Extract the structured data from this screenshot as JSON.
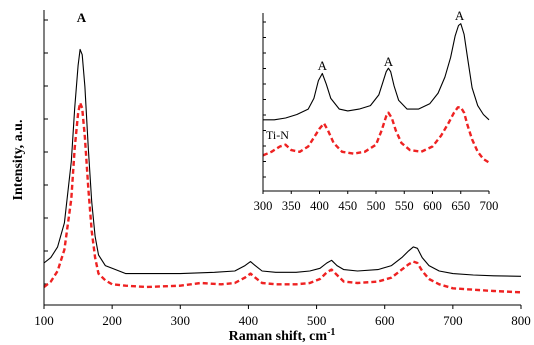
{
  "chart_data": [
    {
      "type": "line",
      "xlabel": "Raman  shift, cm",
      "xlabel_sup": "-1",
      "ylabel": "Intensity, a.u.",
      "xlim": [
        100,
        800
      ],
      "ylim": [
        0,
        1
      ],
      "x_ticks": [
        "100",
        "200",
        "300",
        "400",
        "500",
        "600",
        "700",
        "800"
      ],
      "y_ticks_labeled": false,
      "grid": false,
      "annotations": [
        {
          "text": "A",
          "x": 155
        }
      ],
      "series": [
        {
          "color": "#000000",
          "style": "solid",
          "x": [
            100,
            110,
            120,
            130,
            140,
            145,
            150,
            153,
            156,
            160,
            165,
            170,
            175,
            180,
            190,
            200,
            220,
            250,
            300,
            350,
            380,
            395,
            403,
            410,
            420,
            440,
            470,
            490,
            505,
            515,
            522,
            530,
            540,
            560,
            590,
            610,
            625,
            635,
            642,
            648,
            655,
            665,
            680,
            700,
            730,
            760,
            800
          ],
          "y": [
            0.12,
            0.14,
            0.18,
            0.27,
            0.5,
            0.7,
            0.86,
            0.92,
            0.9,
            0.78,
            0.55,
            0.35,
            0.22,
            0.15,
            0.11,
            0.1,
            0.08,
            0.08,
            0.08,
            0.085,
            0.09,
            0.11,
            0.125,
            0.11,
            0.09,
            0.085,
            0.085,
            0.09,
            0.1,
            0.12,
            0.13,
            0.11,
            0.095,
            0.09,
            0.095,
            0.11,
            0.14,
            0.165,
            0.18,
            0.175,
            0.14,
            0.11,
            0.09,
            0.08,
            0.075,
            0.072,
            0.07
          ]
        },
        {
          "color": "#ee2222",
          "style": "dashed",
          "x": [
            100,
            110,
            120,
            130,
            140,
            145,
            150,
            153,
            156,
            160,
            165,
            170,
            175,
            180,
            190,
            200,
            220,
            250,
            300,
            330,
            360,
            380,
            395,
            403,
            410,
            420,
            440,
            470,
            490,
            505,
            515,
            522,
            530,
            540,
            560,
            590,
            610,
            625,
            635,
            642,
            648,
            655,
            665,
            680,
            700,
            730,
            760,
            800
          ],
          "y": [
            0.03,
            0.05,
            0.09,
            0.17,
            0.36,
            0.55,
            0.68,
            0.72,
            0.7,
            0.59,
            0.4,
            0.24,
            0.14,
            0.08,
            0.055,
            0.04,
            0.035,
            0.03,
            0.035,
            0.045,
            0.04,
            0.045,
            0.065,
            0.08,
            0.065,
            0.045,
            0.04,
            0.04,
            0.045,
            0.06,
            0.085,
            0.095,
            0.075,
            0.05,
            0.045,
            0.05,
            0.065,
            0.095,
            0.115,
            0.125,
            0.12,
            0.09,
            0.06,
            0.04,
            0.025,
            0.02,
            0.015,
            0.01
          ]
        }
      ]
    },
    {
      "type": "line",
      "xlim": [
        300,
        700
      ],
      "ylim": [
        0,
        1
      ],
      "x_ticks": [
        "300",
        "350",
        "400",
        "450",
        "500",
        "550",
        "600",
        "650",
        "700"
      ],
      "y_ticks_labeled": false,
      "grid": false,
      "annotations": [
        {
          "text": "A",
          "x": 405
        },
        {
          "text": "A",
          "x": 522
        },
        {
          "text": "A",
          "x": 648
        },
        {
          "text": "Ti-N",
          "x": 300
        }
      ],
      "series": [
        {
          "color": "#000000",
          "style": "solid",
          "x": [
            300,
            320,
            340,
            360,
            380,
            390,
            398,
            405,
            412,
            420,
            435,
            450,
            470,
            490,
            505,
            512,
            518,
            522,
            526,
            532,
            540,
            555,
            575,
            595,
            610,
            622,
            632,
            640,
            646,
            650,
            656,
            662,
            670,
            680,
            690,
            700
          ],
          "y": [
            0.4,
            0.4,
            0.41,
            0.43,
            0.46,
            0.52,
            0.62,
            0.66,
            0.6,
            0.52,
            0.46,
            0.45,
            0.46,
            0.48,
            0.54,
            0.61,
            0.67,
            0.69,
            0.67,
            0.59,
            0.51,
            0.46,
            0.46,
            0.49,
            0.55,
            0.64,
            0.75,
            0.87,
            0.93,
            0.94,
            0.88,
            0.75,
            0.58,
            0.48,
            0.43,
            0.4
          ]
        },
        {
          "color": "#ee2222",
          "style": "dashed",
          "x": [
            300,
            315,
            330,
            340,
            350,
            365,
            380,
            390,
            400,
            408,
            415,
            425,
            440,
            460,
            480,
            500,
            510,
            518,
            522,
            528,
            535,
            545,
            560,
            580,
            600,
            615,
            628,
            638,
            645,
            650,
            656,
            662,
            670,
            680,
            690,
            700
          ],
          "y": [
            0.2,
            0.22,
            0.25,
            0.26,
            0.23,
            0.22,
            0.25,
            0.3,
            0.35,
            0.38,
            0.34,
            0.27,
            0.22,
            0.21,
            0.22,
            0.26,
            0.34,
            0.42,
            0.44,
            0.41,
            0.34,
            0.27,
            0.23,
            0.22,
            0.25,
            0.31,
            0.38,
            0.44,
            0.47,
            0.47,
            0.44,
            0.37,
            0.29,
            0.22,
            0.18,
            0.16
          ]
        }
      ]
    }
  ]
}
